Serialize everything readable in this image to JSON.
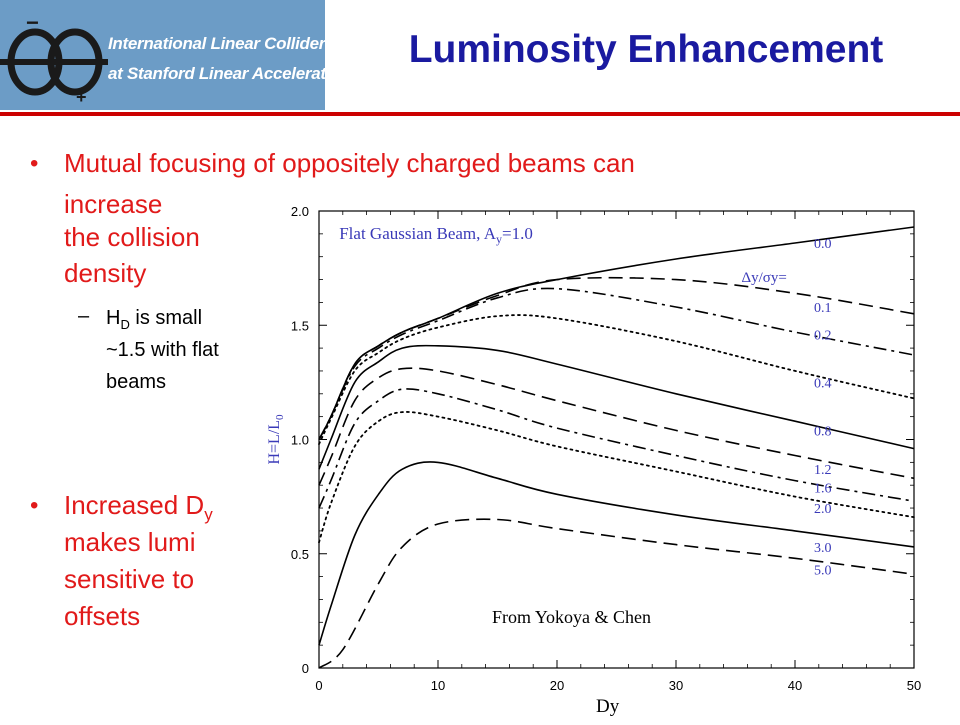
{
  "logo": {
    "line1": "International Linear Collider",
    "line2": "at Stanford Linear Accelerator Center",
    "minus": "−",
    "plus": "+"
  },
  "title": "Luminosity Enhancement",
  "bullets": {
    "b1_line1": "Mutual focusing of oppositely charged beams can",
    "b1_line2": "increase",
    "b1_line3": "the collision",
    "b1_line4": "density",
    "sub_h": "H",
    "sub_d": "D",
    "sub_rest1": " is small",
    "sub_line2": "~1.5 with flat",
    "sub_line3": "beams",
    "b2_pre": "Increased D",
    "b2_sub": "y",
    "b2_line2": "makes lumi",
    "b2_line3": "sensitive to",
    "b2_line4": "offsets",
    "dash": "–",
    "dot": "•"
  },
  "credit": "From Yokoya & Chen",
  "xlabel_bottom": "Dy",
  "chart_data": {
    "type": "line",
    "title": "Flat Gaussian Beam, A",
    "title_sub": "y",
    "title_tail": "=1.0",
    "ylabel": "H=L/L",
    "ylabel_sub": "0",
    "legend_header": "Δy/σy=",
    "xlim": [
      0,
      50
    ],
    "ylim": [
      0,
      2.0
    ],
    "xticks": [
      "0",
      "10",
      "20",
      "30",
      "40",
      "50"
    ],
    "yticks": [
      "0",
      "0.5",
      "1.0",
      "1.5",
      "2.0"
    ],
    "xtick_values": [
      0,
      10,
      20,
      30,
      40,
      50
    ],
    "ytick_values": [
      0,
      0.5,
      1.0,
      1.5,
      2.0
    ],
    "grid": false,
    "colors": {
      "curve": "#000000",
      "label": "#3a3ab8",
      "axis": "#000000"
    },
    "series": [
      {
        "name": "0.0",
        "style": "solid",
        "x": [
          0,
          1,
          3,
          5,
          7,
          10,
          15,
          20,
          30,
          40,
          50
        ],
        "y": [
          1.0,
          1.1,
          1.33,
          1.41,
          1.47,
          1.53,
          1.64,
          1.7,
          1.79,
          1.86,
          1.93
        ]
      },
      {
        "name": "0.1",
        "style": "dashed",
        "x": [
          0,
          1,
          3,
          5,
          7,
          10,
          15,
          20,
          30,
          40,
          50
        ],
        "y": [
          1.0,
          1.1,
          1.33,
          1.41,
          1.47,
          1.53,
          1.63,
          1.7,
          1.7,
          1.64,
          1.55
        ]
      },
      {
        "name": "0.2",
        "style": "dashdot",
        "x": [
          0,
          1,
          3,
          5,
          7,
          10,
          15,
          20,
          30,
          40,
          50
        ],
        "y": [
          1.0,
          1.1,
          1.32,
          1.4,
          1.46,
          1.52,
          1.62,
          1.66,
          1.58,
          1.47,
          1.37
        ]
      },
      {
        "name": "0.4",
        "style": "dotted",
        "x": [
          0,
          1,
          3,
          5,
          7,
          10,
          15,
          20,
          30,
          40,
          50
        ],
        "y": [
          0.98,
          1.09,
          1.3,
          1.38,
          1.44,
          1.49,
          1.54,
          1.53,
          1.43,
          1.3,
          1.18
        ]
      },
      {
        "name": "0.8",
        "style": "solid",
        "x": [
          0,
          1,
          3,
          5,
          7,
          10,
          15,
          20,
          30,
          40,
          50
        ],
        "y": [
          0.87,
          1.0,
          1.25,
          1.34,
          1.4,
          1.41,
          1.39,
          1.33,
          1.2,
          1.08,
          0.96
        ]
      },
      {
        "name": "1.2",
        "style": "dashed",
        "x": [
          0,
          1,
          3,
          5,
          7,
          10,
          15,
          20,
          30,
          40,
          50
        ],
        "y": [
          0.8,
          0.92,
          1.17,
          1.27,
          1.31,
          1.3,
          1.24,
          1.17,
          1.04,
          0.93,
          0.83
        ]
      },
      {
        "name": "1.6",
        "style": "dashdot",
        "x": [
          0,
          1,
          3,
          5,
          7,
          10,
          15,
          20,
          30,
          40,
          50
        ],
        "y": [
          0.7,
          0.82,
          1.07,
          1.17,
          1.22,
          1.2,
          1.13,
          1.05,
          0.93,
          0.82,
          0.73
        ]
      },
      {
        "name": "2.0",
        "style": "dotted",
        "x": [
          0,
          1,
          3,
          5,
          7,
          10,
          15,
          20,
          30,
          40,
          50
        ],
        "y": [
          0.55,
          0.72,
          0.97,
          1.08,
          1.12,
          1.1,
          1.04,
          0.97,
          0.86,
          0.75,
          0.66
        ]
      },
      {
        "name": "3.0",
        "style": "solid",
        "x": [
          0,
          1,
          3,
          5,
          7,
          10,
          15,
          20,
          30,
          40,
          50
        ],
        "y": [
          0.1,
          0.27,
          0.58,
          0.76,
          0.87,
          0.9,
          0.83,
          0.76,
          0.67,
          0.6,
          0.53
        ]
      },
      {
        "name": "5.0",
        "style": "dashed",
        "x": [
          0,
          2,
          5,
          7,
          10,
          15,
          20,
          30,
          40,
          50
        ],
        "y": [
          0.0,
          0.08,
          0.37,
          0.53,
          0.63,
          0.65,
          0.61,
          0.54,
          0.48,
          0.41
        ]
      }
    ]
  }
}
